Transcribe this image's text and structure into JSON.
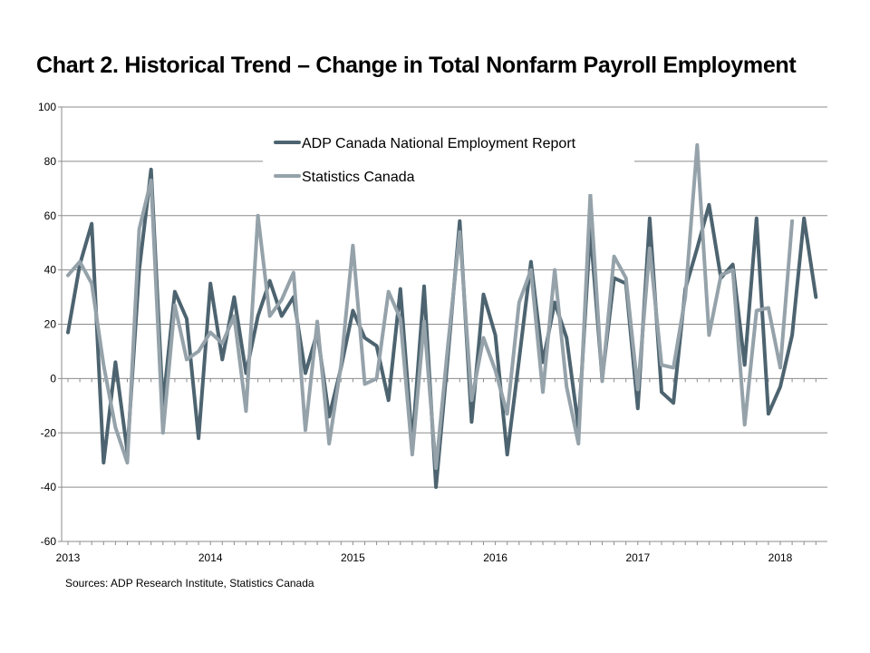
{
  "title": "Chart 2. Historical Trend – Change in Total Nonfarm Payroll Employment",
  "source": "Sources: ADP Research Institute, Statistics Canada",
  "chart_data": {
    "type": "line",
    "title": "Chart 2. Historical Trend – Change in Total Nonfarm Payroll Employment",
    "xlabel": "",
    "ylabel": "",
    "ylim": [
      -60,
      100
    ],
    "yticks": [
      -60,
      -40,
      -20,
      0,
      20,
      40,
      60,
      80,
      100
    ],
    "x_tick_labels": [
      "2013",
      "2014",
      "2015",
      "2016",
      "2017",
      "2018"
    ],
    "x_start": "2013-01",
    "legend_position": "top-center",
    "grid": true,
    "series": [
      {
        "name": "ADP Canada National Employment Report",
        "color": "#4d6470",
        "values": [
          17,
          42,
          57,
          -31,
          6,
          -27,
          40,
          77,
          -10,
          32,
          22,
          -22,
          35,
          7,
          30,
          2,
          23,
          36,
          23,
          30,
          2,
          17,
          -14,
          4,
          25,
          15,
          12,
          -8,
          33,
          -24,
          34,
          -40,
          8,
          58,
          -16,
          31,
          16,
          -28,
          7,
          43,
          6,
          28,
          15,
          -18,
          55,
          0,
          37,
          35,
          -11,
          59,
          -5,
          -9,
          33,
          48,
          64,
          37,
          42,
          5,
          59,
          -13,
          -3,
          16,
          59,
          30
        ]
      },
      {
        "name": "Statistics Canada",
        "color": "#95a2aa",
        "values": [
          38,
          43,
          35,
          5,
          -18,
          -31,
          55,
          73,
          -20,
          27,
          7,
          10,
          17,
          13,
          23,
          -12,
          60,
          23,
          29,
          39,
          -19,
          21,
          -24,
          5,
          49,
          -2,
          0,
          32,
          22,
          -28,
          21,
          -33,
          12,
          54,
          -8,
          15,
          3,
          -13,
          28,
          40,
          -5,
          40,
          -3,
          -24,
          68,
          -1,
          45,
          37,
          -4,
          48,
          5,
          4,
          30,
          86,
          16,
          38,
          40,
          -17,
          25,
          26,
          4,
          58
        ]
      }
    ]
  }
}
